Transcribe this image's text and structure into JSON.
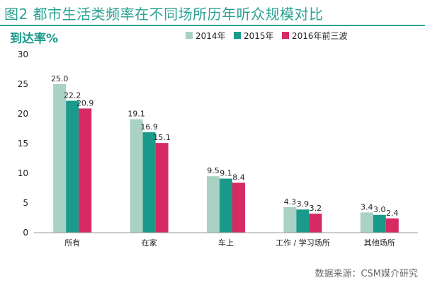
{
  "title": "图2 都市生活类频率在不同场所历年听众规模对比",
  "source": "数据来源：CSM媒介研究",
  "colors": {
    "title": "#2aa293",
    "series": [
      "#a9d1c4",
      "#1a9a8a",
      "#d62a62"
    ]
  },
  "chart_data": {
    "type": "bar",
    "ylabel": "到达率%",
    "xlabel": "",
    "ylim": [
      0,
      30
    ],
    "yticks": [
      0,
      5,
      10,
      15,
      20,
      25,
      30
    ],
    "grid": false,
    "legend_position": "top-right",
    "categories": [
      "所有",
      "在家",
      "车上",
      "工作 / 学习场所",
      "其他场所"
    ],
    "series": [
      {
        "name": "2014年",
        "values": [
          25.0,
          19.1,
          9.5,
          4.3,
          3.4
        ],
        "labels": [
          "25.0",
          "19.1",
          "9.5",
          "4.3",
          "3.4"
        ]
      },
      {
        "name": "2015年",
        "values": [
          22.2,
          16.9,
          9.1,
          3.9,
          3.0
        ],
        "labels": [
          "22.2",
          "16.9",
          "9.1",
          "3.9",
          "3.0"
        ]
      },
      {
        "name": "2016年前三波",
        "values": [
          20.9,
          15.1,
          8.4,
          3.2,
          2.4
        ],
        "labels": [
          "20.9",
          "15.1",
          "8.4",
          "3.2",
          "2.4"
        ]
      }
    ]
  }
}
